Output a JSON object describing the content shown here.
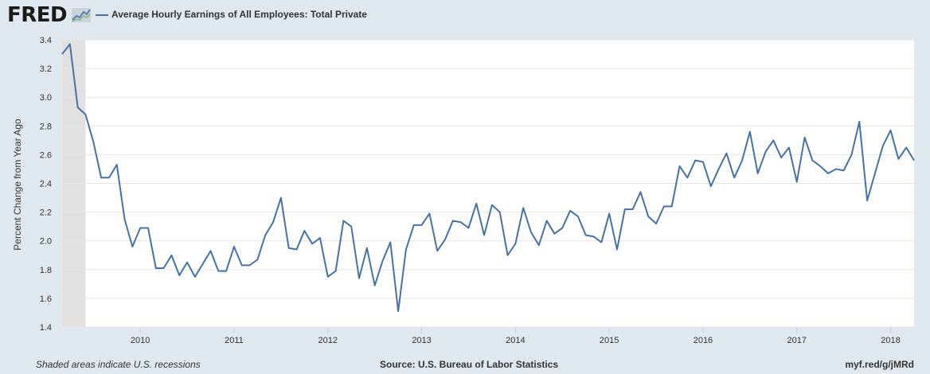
{
  "header": {
    "logo_text": "FRED",
    "logo_icon": "chart-line-icon"
  },
  "footer": {
    "recession_note": "Shaded areas indicate U.S. recessions",
    "source": "Source: U.S. Bureau of Labor Statistics",
    "link": "myf.red/g/jMRd"
  },
  "colors": {
    "series": "#4572a7",
    "background": "#e1e9f0",
    "plot": "#ffffff",
    "recession": "#e1e1e1"
  },
  "chart_data": {
    "type": "line",
    "ylabel": "Percent Change from Year Ago",
    "xlabel": "",
    "ylim": [
      1.4,
      3.4
    ],
    "yticks": [
      "1.4",
      "1.6",
      "1.8",
      "2.0",
      "2.2",
      "2.4",
      "2.6",
      "2.8",
      "3.0",
      "3.2",
      "3.4"
    ],
    "xlim": [
      "2009-03",
      "2018-04"
    ],
    "xticks": [
      "2010",
      "2011",
      "2012",
      "2013",
      "2014",
      "2015",
      "2016",
      "2017",
      "2018"
    ],
    "grid": true,
    "legend": "top-left",
    "recessions": [
      {
        "start": "2009-03",
        "end": "2009-06"
      }
    ],
    "series": [
      {
        "name": "Average Hourly Earnings of All Employees: Total Private",
        "start": "2009-03",
        "frequency": "monthly",
        "values": [
          3.3,
          3.37,
          2.93,
          2.88,
          2.69,
          2.44,
          2.44,
          2.53,
          2.15,
          1.96,
          2.09,
          2.09,
          1.81,
          1.81,
          1.9,
          1.76,
          1.85,
          1.75,
          1.84,
          1.93,
          1.79,
          1.79,
          1.96,
          1.83,
          1.83,
          1.87,
          2.04,
          2.13,
          2.3,
          1.95,
          1.94,
          2.07,
          1.98,
          2.02,
          1.75,
          1.79,
          2.14,
          2.1,
          1.74,
          1.95,
          1.69,
          1.86,
          1.99,
          1.51,
          1.94,
          2.11,
          2.11,
          2.19,
          1.93,
          2.01,
          2.14,
          2.13,
          2.09,
          2.26,
          2.04,
          2.25,
          2.2,
          1.9,
          1.98,
          2.23,
          2.06,
          1.97,
          2.14,
          2.05,
          2.09,
          2.21,
          2.17,
          2.04,
          2.03,
          1.99,
          2.19,
          1.94,
          2.22,
          2.22,
          2.34,
          2.17,
          2.12,
          2.24,
          2.24,
          2.52,
          2.44,
          2.56,
          2.55,
          2.38,
          2.5,
          2.61,
          2.44,
          2.56,
          2.76,
          2.47,
          2.62,
          2.7,
          2.58,
          2.65,
          2.41,
          2.72,
          2.56,
          2.52,
          2.47,
          2.5,
          2.49,
          2.6,
          2.83,
          2.28,
          2.47,
          2.66,
          2.77,
          2.57,
          2.65,
          2.56
        ]
      }
    ]
  }
}
